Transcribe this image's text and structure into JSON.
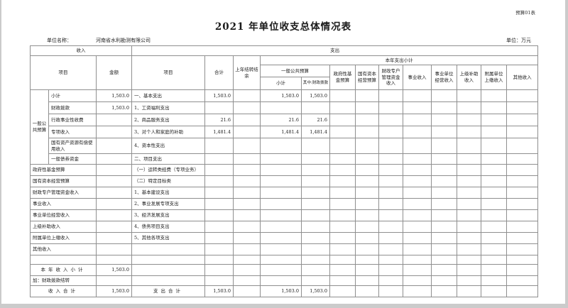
{
  "page": {
    "corner_label": "预算01表",
    "title": "2021 年单位收支总体情况表",
    "unit_name_label": "单位名称：",
    "unit_name": "河南省水利勘测有限公司",
    "unit_money_label": "单位：万元"
  },
  "table": {
    "header": {
      "income_section": "收入",
      "expense_section": "支出",
      "income_item": "项目",
      "income_amount": "金额",
      "expense_item": "项目",
      "total": "合计",
      "carryover": "上年结转结余",
      "year_expense_subtotal": "本年支出小计",
      "general_public_budget": "一般公共预算",
      "general_subtotal": "小计",
      "of_which_fiscal": "其中:财政拨款",
      "gov_fund_budget": "政府性基金预算",
      "state_capital_budget": "国有资本经营预算",
      "fiscal_account_funds": "财政专户管理资金收入",
      "business_income": "事业收入",
      "business_operating_income": "事业单位经营收入",
      "superior_subsidy_income": "上级补助收入",
      "affiliated_unit_income": "附属单位上缴收入",
      "other_income": "其他收入"
    },
    "rows": [
      {
        "group": {
          "label": "一般公共预算",
          "rowspan": 6
        },
        "income": "小计",
        "amount": "1,503.0",
        "expense": "一、基本支出",
        "values": [
          "1,503.0",
          "",
          "1,503.0",
          "1,503.0",
          "",
          "",
          "",
          "",
          "",
          "",
          "",
          ""
        ],
        "h": 17
      },
      {
        "income": "财政拨款",
        "amount": "1,503.0",
        "expense": "1、工资福利支出",
        "values": [
          "",
          "",
          "",
          "",
          "",
          "",
          "",
          "",
          "",
          "",
          "",
          ""
        ],
        "h": 17
      },
      {
        "income": "行政事业性收费",
        "amount": "",
        "expense": "2、商品服务支出",
        "values": [
          "21.6",
          "",
          "21.6",
          "21.6",
          "",
          "",
          "",
          "",
          "",
          "",
          "",
          ""
        ],
        "h": 17
      },
      {
        "income": "专项收入",
        "amount": "",
        "expense": "3、对个人和家庭的补助",
        "values": [
          "1,481.4",
          "",
          "1,481.4",
          "1,481.4",
          "",
          "",
          "",
          "",
          "",
          "",
          "",
          ""
        ],
        "h": 17
      },
      {
        "income": "国有资产资源有偿使用收入",
        "amount": "",
        "expense": "4、资本性支出",
        "values": [
          "",
          "",
          "",
          "",
          "",
          "",
          "",
          "",
          "",
          "",
          "",
          ""
        ],
        "h": 22
      },
      {
        "income": "一般债券资金",
        "amount": "",
        "expense": "二、项目支出",
        "values": [
          "",
          "",
          "",
          "",
          "",
          "",
          "",
          "",
          "",
          "",
          "",
          ""
        ],
        "h": 15
      },
      {
        "income": "政府性基金预算",
        "span2": true,
        "amount": "",
        "expense": "（一）运转类经费（专项业务）",
        "values": [
          "",
          "",
          "",
          "",
          "",
          "",
          "",
          "",
          "",
          "",
          "",
          ""
        ],
        "h": 16
      },
      {
        "income": "国有资本经营预算",
        "span2": true,
        "amount": "",
        "expense": "（二）特定目标类",
        "values": [
          "",
          "",
          "",
          "",
          "",
          "",
          "",
          "",
          "",
          "",
          "",
          ""
        ],
        "h": 16
      },
      {
        "income": "财政专户管理资金收入",
        "span2": true,
        "amount": "",
        "expense": "1、基本建设支出",
        "values": [
          "",
          "",
          "",
          "",
          "",
          "",
          "",
          "",
          "",
          "",
          "",
          ""
        ],
        "h": 16
      },
      {
        "income": "事业收入",
        "span2": true,
        "amount": "",
        "expense": "2、事业发展专项支出",
        "values": [
          "",
          "",
          "",
          "",
          "",
          "",
          "",
          "",
          "",
          "",
          "",
          ""
        ],
        "h": 16
      },
      {
        "income": "事业单位经营收入",
        "span2": true,
        "amount": "",
        "expense": "3、经济发展支出",
        "values": [
          "",
          "",
          "",
          "",
          "",
          "",
          "",
          "",
          "",
          "",
          "",
          ""
        ],
        "h": 16
      },
      {
        "income": "上级补助收入",
        "span2": true,
        "amount": "",
        "expense": "4、债务项目支出",
        "values": [
          "",
          "",
          "",
          "",
          "",
          "",
          "",
          "",
          "",
          "",
          "",
          ""
        ],
        "h": 16
      },
      {
        "income": "附属单位上缴收入",
        "span2": true,
        "amount": "",
        "expense": "5、其他各项支出",
        "values": [
          "",
          "",
          "",
          "",
          "",
          "",
          "",
          "",
          "",
          "",
          "",
          ""
        ],
        "h": 16
      },
      {
        "income": "其他收入",
        "span2": true,
        "amount": "",
        "expense": "",
        "values": [
          "",
          "",
          "",
          "",
          "",
          "",
          "",
          "",
          "",
          "",
          "",
          ""
        ],
        "h": 16
      },
      {
        "income": "",
        "span2": true,
        "amount": "",
        "expense": "",
        "values": [
          "",
          "",
          "",
          "",
          "",
          "",
          "",
          "",
          "",
          "",
          "",
          ""
        ],
        "h": 13
      },
      {
        "income": "本年收入小计",
        "span2": true,
        "income_style": "total",
        "amount": "1,503.0",
        "expense": "",
        "values": [
          "",
          "",
          "",
          "",
          "",
          "",
          "",
          "",
          "",
          "",
          "",
          ""
        ],
        "h": 16,
        "dark_top": true
      },
      {
        "income": "加：财政拨款结转",
        "span2": true,
        "amount": "",
        "expense": "",
        "values": [
          "",
          "",
          "",
          "",
          "",
          "",
          "",
          "",
          "",
          "",
          "",
          ""
        ],
        "h": 14
      },
      {
        "income": "收入合计",
        "span2": true,
        "income_style": "total",
        "amount": "1,503.0",
        "expense": "支出合计",
        "expense_style": "total",
        "values": [
          "1,503.0",
          "",
          "1,503.0",
          "1,503.0",
          "",
          "",
          "",
          "",
          "",
          "",
          "",
          ""
        ],
        "h": 16,
        "dark_top": true
      }
    ]
  }
}
